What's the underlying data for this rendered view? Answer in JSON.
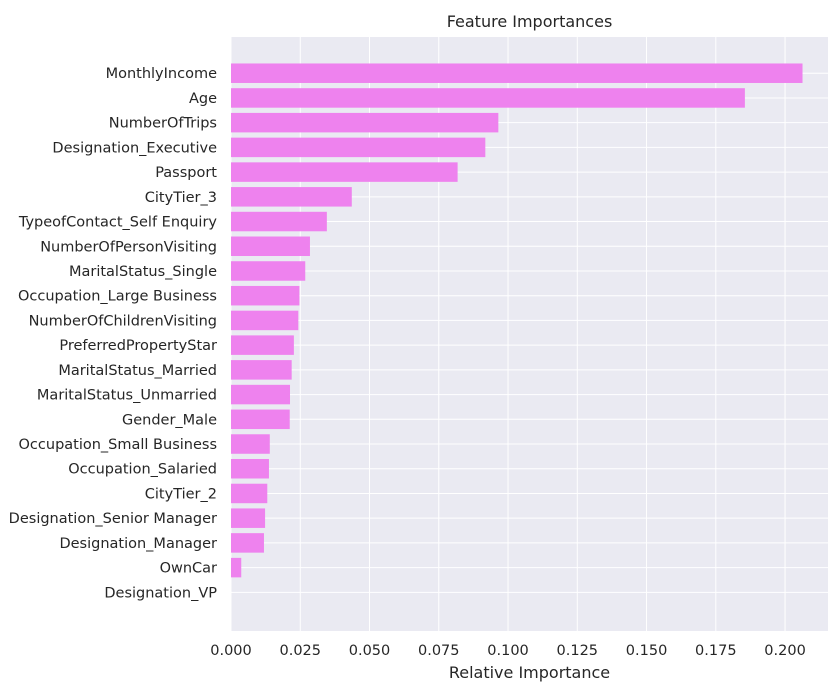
{
  "chart_data": {
    "type": "bar",
    "orientation": "horizontal",
    "title": "Feature Importances",
    "xlabel": "Relative Importance",
    "ylabel": "",
    "xlim": [
      0,
      0.2155
    ],
    "xticks": [
      0.0,
      0.025,
      0.05,
      0.075,
      0.1,
      0.125,
      0.15,
      0.175,
      0.2
    ],
    "xtick_labels": [
      "0.000",
      "0.025",
      "0.050",
      "0.075",
      "0.100",
      "0.125",
      "0.150",
      "0.175",
      "0.200"
    ],
    "grid": true,
    "colors": {
      "bar": "#ee82ee",
      "background": "#eaeaf2",
      "grid": "#ffffff",
      "text": "#262626"
    },
    "categories": [
      "MonthlyIncome",
      "Age",
      "NumberOfTrips",
      "Designation_Executive",
      "Passport",
      "CityTier_3",
      "TypeofContact_Self Enquiry",
      "NumberOfPersonVisiting",
      "MaritalStatus_Single",
      "Occupation_Large Business",
      "NumberOfChildrenVisiting",
      "PreferredPropertyStar",
      "MaritalStatus_Married",
      "MaritalStatus_Unmarried",
      "Gender_Male",
      "Occupation_Small Business",
      "Occupation_Salaried",
      "CityTier_2",
      "Designation_Senior Manager",
      "Designation_Manager",
      "OwnCar",
      "Designation_VP"
    ],
    "values": [
      0.2063,
      0.1855,
      0.0965,
      0.0918,
      0.0818,
      0.0436,
      0.0346,
      0.0285,
      0.0268,
      0.0247,
      0.0243,
      0.0227,
      0.0219,
      0.0213,
      0.0212,
      0.014,
      0.0137,
      0.0131,
      0.0123,
      0.0119,
      0.0037,
      0.0
    ]
  }
}
